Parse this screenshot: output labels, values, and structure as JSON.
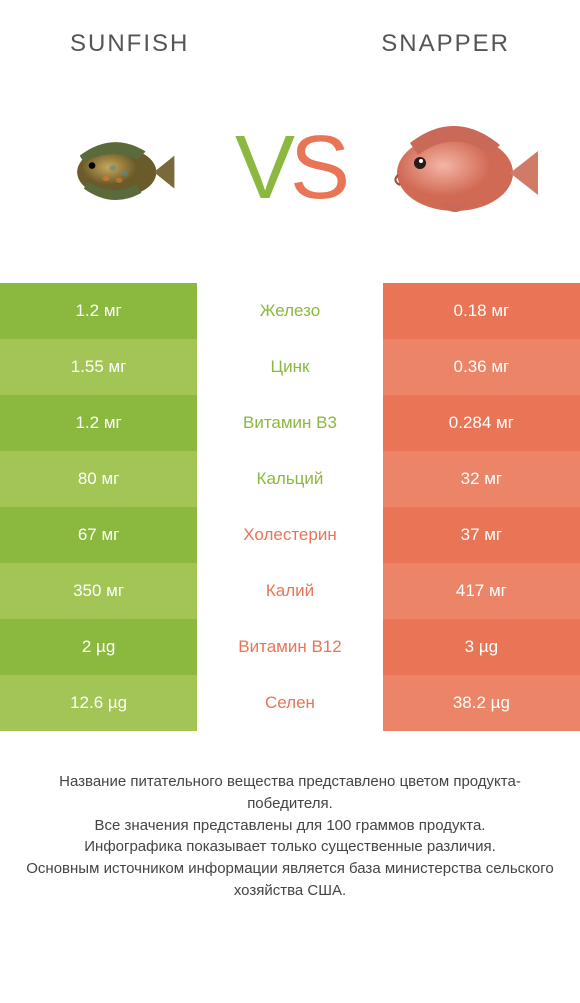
{
  "header": {
    "left_title": "SUNFISH",
    "right_title": "SNAPPER",
    "vs_label": "VS"
  },
  "colors": {
    "left_primary": "#8bb83e",
    "left_alt": "#a2c555",
    "right_primary": "#e97456",
    "right_alt": "#ec8568",
    "vs_left": "#8bb83e",
    "vs_right": "#e97456",
    "left_title_color": "#555555",
    "right_title_color": "#555555"
  },
  "rows": [
    {
      "left": "1.2 мг",
      "label": "Железо",
      "right": "0.18 мг",
      "winner": "left"
    },
    {
      "left": "1.55 мг",
      "label": "Цинк",
      "right": "0.36 мг",
      "winner": "left"
    },
    {
      "left": "1.2 мг",
      "label": "Витамин B3",
      "right": "0.284 мг",
      "winner": "left"
    },
    {
      "left": "80 мг",
      "label": "Кальций",
      "right": "32 мг",
      "winner": "left"
    },
    {
      "left": "67 мг",
      "label": "Холестерин",
      "right": "37 мг",
      "winner": "right"
    },
    {
      "left": "350 мг",
      "label": "Калий",
      "right": "417 мг",
      "winner": "right"
    },
    {
      "left": "2 µg",
      "label": "Витамин B12",
      "right": "3 µg",
      "winner": "right"
    },
    {
      "left": "12.6 µg",
      "label": "Селен",
      "right": "38.2 µg",
      "winner": "right"
    }
  ],
  "footer": {
    "line1": "Название питательного вещества представлено цветом продукта-победителя.",
    "line2": "Все значения представлены для 100 граммов продукта.",
    "line3": "Инфографика показывает только существенные различия.",
    "line4": "Основным источником информации является база министерства сельского хозяйства США."
  }
}
